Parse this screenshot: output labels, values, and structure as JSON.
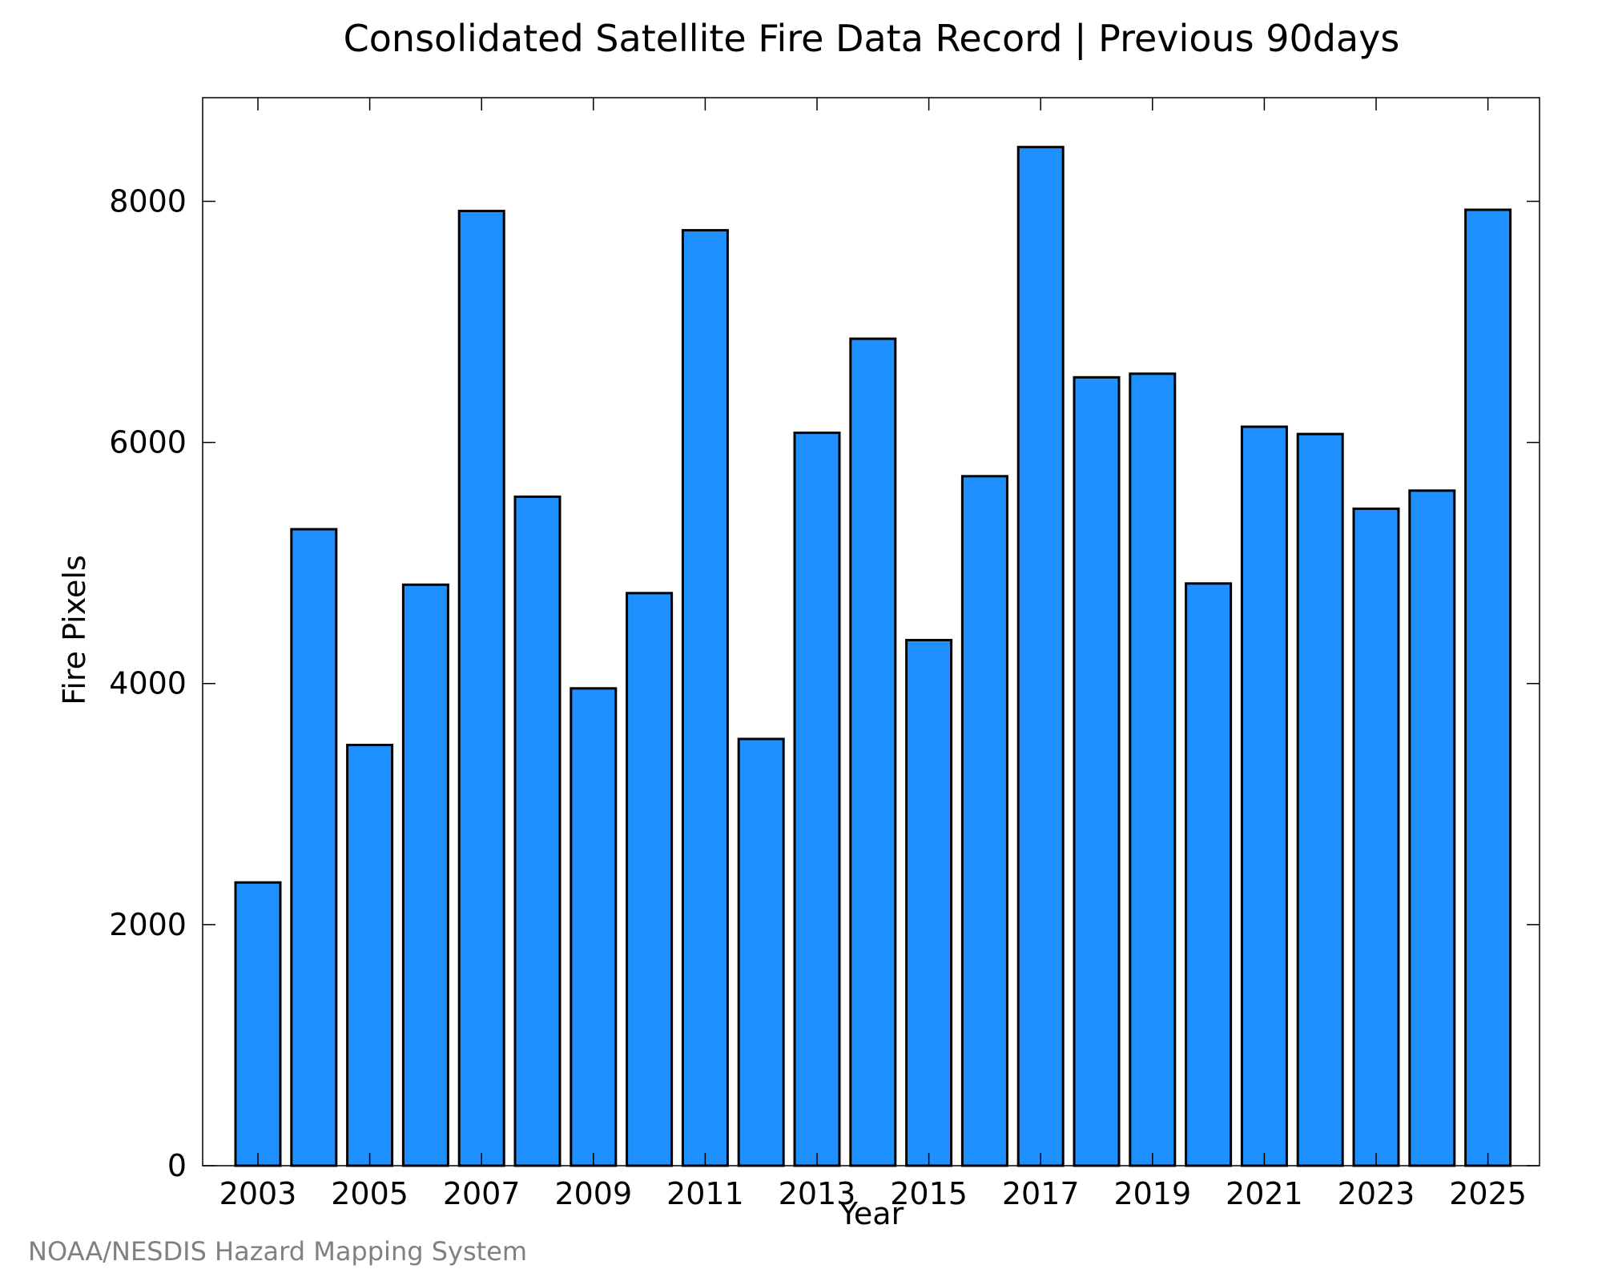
{
  "chart_data": {
    "type": "bar",
    "title": "Consolidated Satellite Fire Data Record | Previous 90days",
    "xlabel": "Year",
    "ylabel": "Fire Pixels",
    "categories": [
      "2003",
      "2004",
      "2005",
      "2006",
      "2007",
      "2008",
      "2009",
      "2010",
      "2011",
      "2012",
      "2013",
      "2014",
      "2015",
      "2016",
      "2017",
      "2018",
      "2019",
      "2020",
      "2021",
      "2022",
      "2023",
      "2024",
      "2025"
    ],
    "values": [
      2350,
      5280,
      3490,
      4820,
      7920,
      5550,
      3960,
      4750,
      7760,
      3540,
      6080,
      6860,
      4360,
      5720,
      8450,
      6540,
      6570,
      4830,
      6130,
      6070,
      5450,
      5600,
      7930
    ],
    "x_tick_labels": [
      "2003",
      "2005",
      "2007",
      "2009",
      "2011",
      "2013",
      "2015",
      "2017",
      "2019",
      "2021",
      "2023",
      "2025"
    ],
    "y_ticks": [
      0,
      2000,
      4000,
      6000,
      8000
    ],
    "ylim": [
      0,
      8860
    ],
    "grid": false,
    "bar_color": "#1e90ff",
    "bar_edge_color": "#000000"
  },
  "footer": {
    "source": "NOAA/NESDIS Hazard Mapping System"
  }
}
